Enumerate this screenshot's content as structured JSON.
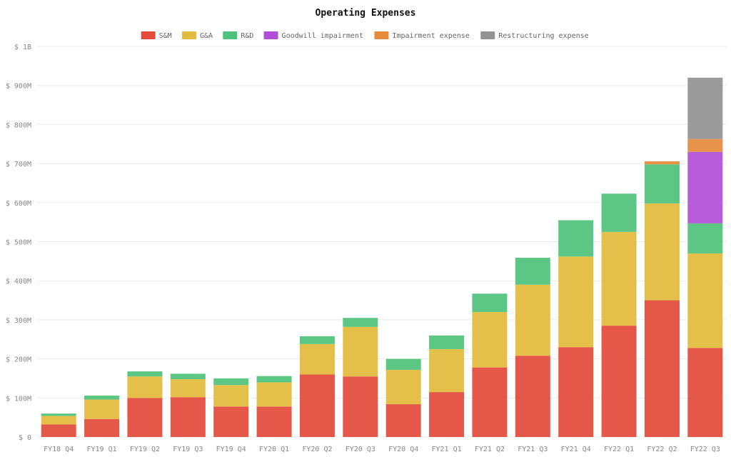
{
  "chart_data": {
    "type": "bar",
    "stacked": true,
    "title": "Operating Expenses",
    "legend_position": "top",
    "grid": true,
    "ylim": [
      0,
      1000000000
    ],
    "y_ticks": [
      0,
      100000000,
      200000000,
      300000000,
      400000000,
      500000000,
      600000000,
      700000000,
      800000000,
      900000000,
      1000000000
    ],
    "y_tick_labels": [
      "$ 0",
      "$ 100M",
      "$ 200M",
      "$ 300M",
      "$ 400M",
      "$ 500M",
      "$ 600M",
      "$ 700M",
      "$ 800M",
      "$ 900M",
      "$ 1B"
    ],
    "categories": [
      "FY18 Q4",
      "FY19 Q1",
      "FY19 Q2",
      "FY19 Q3",
      "FY19 Q4",
      "FY20 Q1",
      "FY20 Q2",
      "FY20 Q3",
      "FY20 Q4",
      "FY21 Q1",
      "FY21 Q2",
      "FY21 Q3",
      "FY21 Q4",
      "FY22 Q1",
      "FY22 Q2",
      "FY22 Q3"
    ],
    "series": [
      {
        "name": "S&M",
        "color": "#e34a3a",
        "values": [
          32000000,
          46000000,
          100000000,
          102000000,
          78000000,
          78000000,
          160000000,
          155000000,
          84000000,
          115000000,
          178000000,
          208000000,
          230000000,
          285000000,
          350000000,
          228000000
        ]
      },
      {
        "name": "G&A",
        "color": "#e2bb3c",
        "values": [
          22000000,
          50000000,
          55000000,
          46000000,
          55000000,
          62000000,
          78000000,
          127000000,
          88000000,
          110000000,
          142000000,
          182000000,
          232000000,
          240000000,
          248000000,
          242000000
        ]
      },
      {
        "name": "R&D",
        "color": "#4ec27a",
        "values": [
          6000000,
          10000000,
          13000000,
          14000000,
          17000000,
          16000000,
          20000000,
          23000000,
          28000000,
          35000000,
          47000000,
          69000000,
          93000000,
          98000000,
          100000000,
          77000000
        ]
      },
      {
        "name": "Goodwill impairment",
        "color": "#b14fd8",
        "values": [
          0,
          0,
          0,
          0,
          0,
          0,
          0,
          0,
          0,
          0,
          0,
          0,
          0,
          0,
          0,
          183000000
        ]
      },
      {
        "name": "Impairment expense",
        "color": "#e68a3c",
        "values": [
          0,
          0,
          0,
          0,
          0,
          0,
          0,
          0,
          0,
          0,
          0,
          0,
          0,
          0,
          8000000,
          33000000
        ]
      },
      {
        "name": "Restructuring expense",
        "color": "#929292",
        "values": [
          0,
          0,
          0,
          0,
          0,
          0,
          0,
          0,
          0,
          0,
          0,
          0,
          0,
          0,
          0,
          157000000
        ]
      }
    ]
  }
}
